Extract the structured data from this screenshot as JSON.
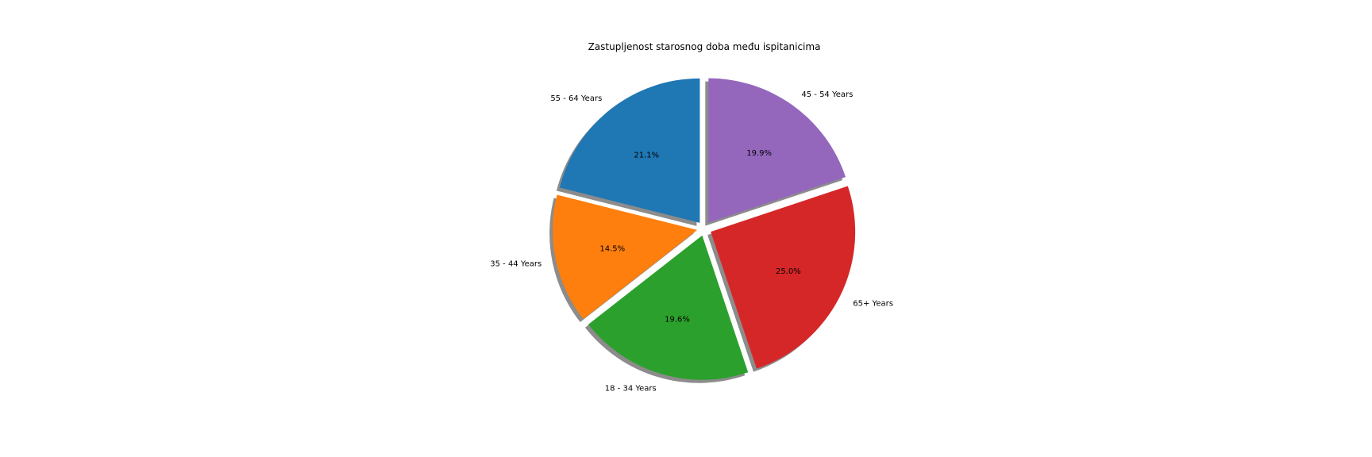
{
  "chart_data": {
    "type": "pie",
    "title": "Zastupljenost starosnog doba među ispitanicima",
    "slices": [
      {
        "label": "55 - 64 Years",
        "value": 21.1,
        "pct_label": "21.1%",
        "color": "#1f77b4"
      },
      {
        "label": "35 - 44 Years",
        "value": 14.5,
        "pct_label": "14.5%",
        "color": "#ff7f0e"
      },
      {
        "label": "18 - 34 Years",
        "value": 19.6,
        "pct_label": "19.6%",
        "color": "#2ca02c"
      },
      {
        "label": "65+ Years",
        "value": 25.0,
        "pct_label": "25.0%",
        "color": "#d62728"
      },
      {
        "label": "45 - 54 Years",
        "value": 19.9,
        "pct_label": "19.9%",
        "color": "#9467bd"
      }
    ],
    "start_angle_deg": 90,
    "direction": "counterclockwise",
    "exploded": true,
    "shadow": true,
    "legend": "none"
  }
}
